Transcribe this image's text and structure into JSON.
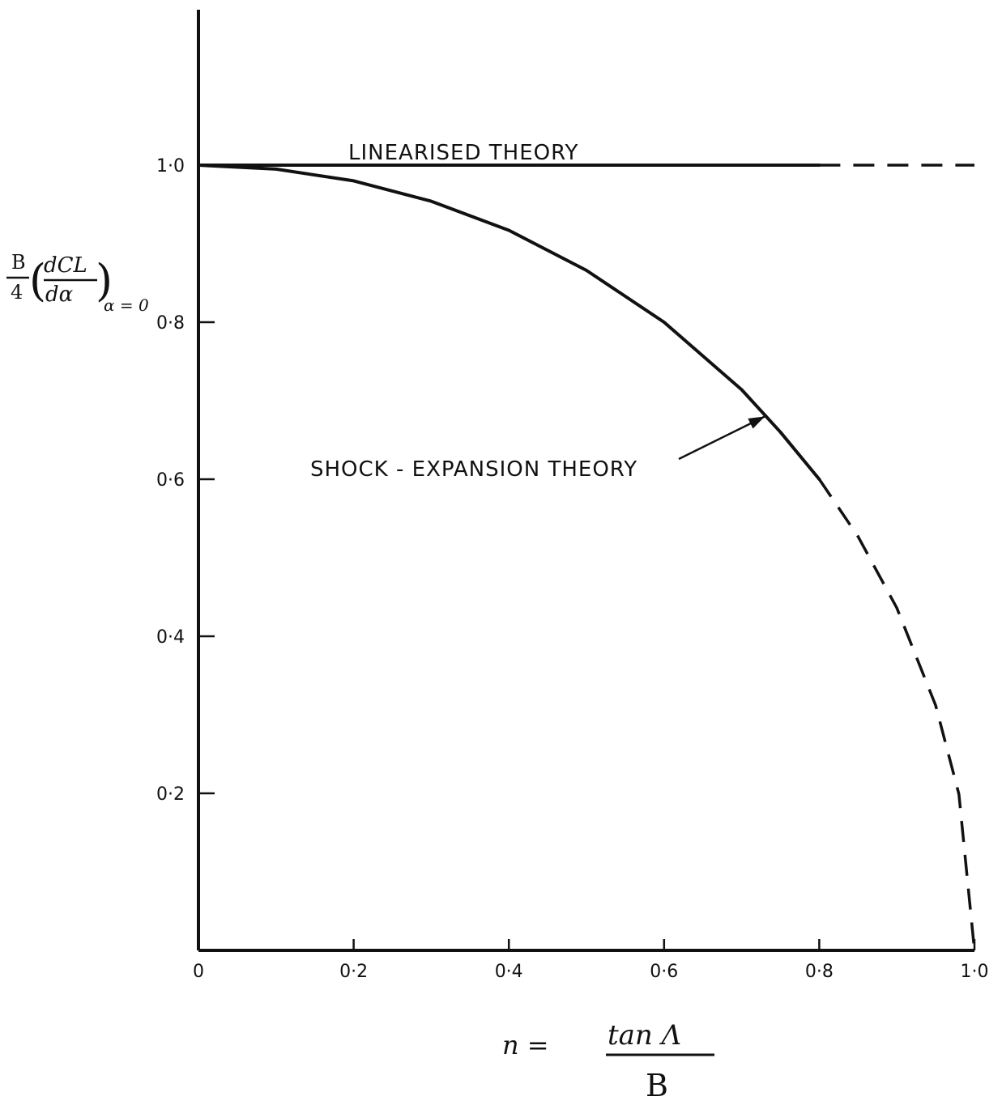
{
  "chart_data": {
    "type": "line",
    "title": "",
    "xlabel": {
      "lhs": "n =",
      "numerator": "tan Λ",
      "denominator": "B"
    },
    "ylabel": {
      "fraction_num": "B",
      "fraction_den": "4",
      "deriv_num": "dCL",
      "deriv_den": "dα",
      "subscript": "α = 0"
    },
    "xlim": [
      0,
      1.0
    ],
    "ylim": [
      0,
      1.2
    ],
    "x_ticks": [
      {
        "value": 0,
        "label": "0"
      },
      {
        "value": 0.2,
        "label": "0·2"
      },
      {
        "value": 0.4,
        "label": "0·4"
      },
      {
        "value": 0.6,
        "label": "0·6"
      },
      {
        "value": 0.8,
        "label": "0·8"
      },
      {
        "value": 1.0,
        "label": "1·0"
      }
    ],
    "y_ticks": [
      {
        "value": 0.2,
        "label": "0·2"
      },
      {
        "value": 0.4,
        "label": "0·4"
      },
      {
        "value": 0.6,
        "label": "0·6"
      },
      {
        "value": 0.8,
        "label": "0·8"
      },
      {
        "value": 1.0,
        "label": "1·0"
      }
    ],
    "grid": false,
    "series": [
      {
        "name": "LINEARISED THEORY",
        "solid": [
          [
            0,
            1.0
          ],
          [
            0.8,
            1.0
          ]
        ],
        "dashed": [
          [
            0.8,
            1.0
          ],
          [
            1.0,
            1.0
          ]
        ]
      },
      {
        "name": "SHOCK - EXPANSION THEORY",
        "solid": [
          [
            0,
            1.0
          ],
          [
            0.1,
            0.995
          ],
          [
            0.2,
            0.98
          ],
          [
            0.3,
            0.954
          ],
          [
            0.4,
            0.917
          ],
          [
            0.5,
            0.866
          ],
          [
            0.6,
            0.8
          ],
          [
            0.7,
            0.714
          ],
          [
            0.75,
            0.66
          ],
          [
            0.8,
            0.6
          ]
        ],
        "dashed": [
          [
            0.8,
            0.6
          ],
          [
            0.85,
            0.527
          ],
          [
            0.9,
            0.436
          ],
          [
            0.95,
            0.312
          ],
          [
            0.98,
            0.199
          ],
          [
            1.0,
            0.0
          ]
        ]
      }
    ],
    "annotations": [
      {
        "text": "LINEARISED THEORY",
        "series": "LINEARISED THEORY"
      },
      {
        "text": "SHOCK - EXPANSION THEORY",
        "series": "SHOCK - EXPANSION THEORY",
        "arrow_to": [
          0.73,
          0.68
        ]
      }
    ]
  }
}
